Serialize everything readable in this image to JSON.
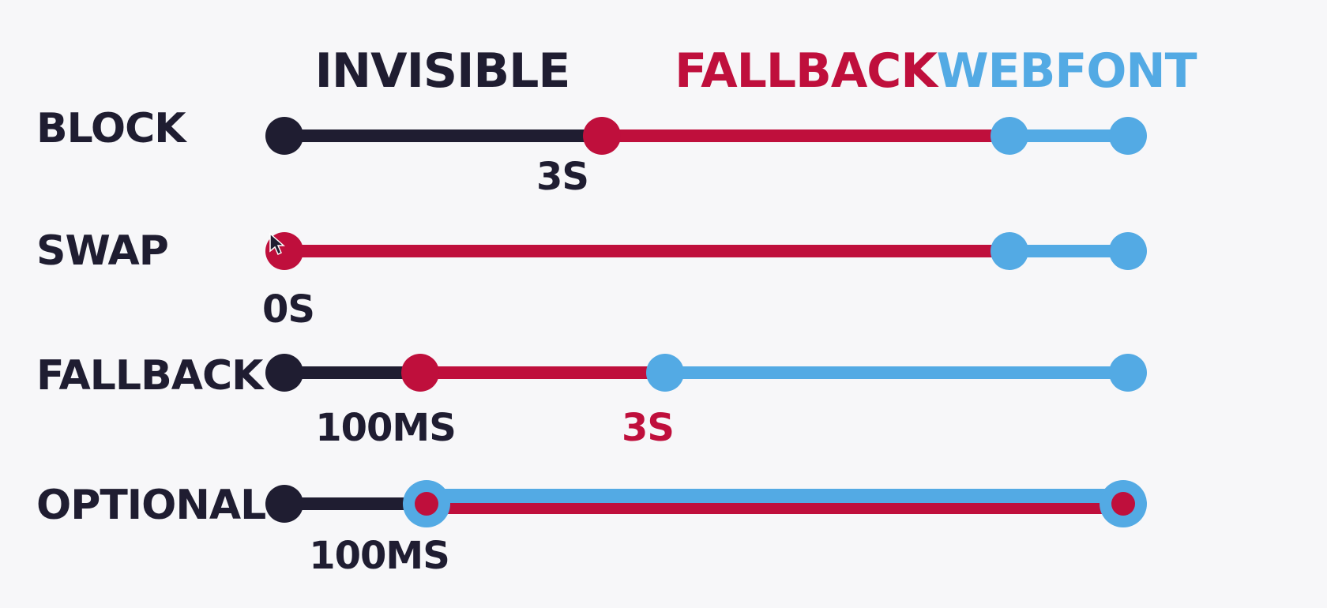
{
  "colors": {
    "invisible": "#1f1d31",
    "fallback": "#bf0f3c",
    "webfont": "#53aae4",
    "background": "#f7f7f9"
  },
  "legend": {
    "invisible": "INVISIBLE",
    "fallback": "FALLBACK",
    "webfont": "WEBFONT"
  },
  "rows": [
    {
      "label": "BLOCK",
      "segments": [
        "invisible",
        "fallback",
        "webfont"
      ],
      "markers": [
        {
          "label": "3S",
          "color": "invisible"
        }
      ]
    },
    {
      "label": "SWAP",
      "segments": [
        "fallback",
        "webfont"
      ],
      "markers": [
        {
          "label": "0S",
          "color": "invisible"
        }
      ]
    },
    {
      "label": "FALLBACK",
      "segments": [
        "invisible",
        "fallback",
        "webfont"
      ],
      "markers": [
        {
          "label": "100MS",
          "color": "invisible"
        },
        {
          "label": "3S",
          "color": "fallback"
        }
      ]
    },
    {
      "label": "OPTIONAL",
      "segments": [
        "invisible",
        "optional"
      ],
      "markers": [
        {
          "label": "100MS",
          "color": "invisible"
        }
      ]
    }
  ]
}
